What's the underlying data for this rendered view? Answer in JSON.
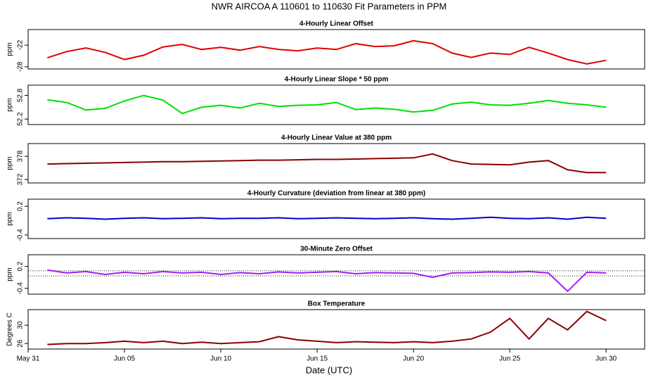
{
  "title": "NWR   AIRCOA A   110601 to 110630   Fit Parameters in PPM",
  "xlabel": "Date (UTC)",
  "chart_data": [
    {
      "type": "line",
      "title": "4-Hourly Linear Offset",
      "ylabel": "ppm",
      "x": [
        "Jun 01",
        "Jun 02",
        "Jun 03",
        "Jun 04",
        "Jun 05",
        "Jun 06",
        "Jun 07",
        "Jun 08",
        "Jun 09",
        "Jun 10",
        "Jun 11",
        "Jun 12",
        "Jun 13",
        "Jun 14",
        "Jun 15",
        "Jun 16",
        "Jun 17",
        "Jun 18",
        "Jun 19",
        "Jun 20",
        "Jun 21",
        "Jun 22",
        "Jun 23",
        "Jun 24",
        "Jun 25",
        "Jun 26",
        "Jun 27",
        "Jun 28",
        "Jun 29",
        "Jun 30"
      ],
      "xlim": [
        "May 31",
        "Jul 02"
      ],
      "series": [
        {
          "color": "#e00000",
          "values": [
            -25.5,
            -23.8,
            -22.8,
            -24,
            -26,
            -24.8,
            -22.5,
            -21.8,
            -23.2,
            -22.6,
            -23.4,
            -22.4,
            -23.2,
            -23.6,
            -22.8,
            -23.2,
            -21.6,
            -22.4,
            -22.2,
            -20.8,
            -21.6,
            -24.2,
            -25.4,
            -24.2,
            -24.6,
            -22.6,
            -24.2,
            -26,
            -27.2,
            -26.2
          ]
        }
      ],
      "ylim": [
        -28.6,
        -17.7
      ],
      "yticks": [
        -28,
        -22
      ]
    },
    {
      "type": "line",
      "title": "4-Hourly Linear Slope * 50 ppm",
      "ylabel": "ppm",
      "x": [
        "Jun 01",
        "Jun 02",
        "Jun 03",
        "Jun 04",
        "Jun 05",
        "Jun 06",
        "Jun 07",
        "Jun 08",
        "Jun 09",
        "Jun 10",
        "Jun 11",
        "Jun 12",
        "Jun 13",
        "Jun 14",
        "Jun 15",
        "Jun 16",
        "Jun 17",
        "Jun 18",
        "Jun 19",
        "Jun 20",
        "Jun 21",
        "Jun 22",
        "Jun 23",
        "Jun 24",
        "Jun 25",
        "Jun 26",
        "Jun 27",
        "Jun 28",
        "Jun 29",
        "Jun 30"
      ],
      "xlim": [
        "May 31",
        "Jul 02"
      ],
      "series": [
        {
          "color": "#00e000",
          "values": [
            52.69,
            52.62,
            52.43,
            52.47,
            52.66,
            52.8,
            52.68,
            52.34,
            52.5,
            52.55,
            52.48,
            52.6,
            52.52,
            52.55,
            52.56,
            52.62,
            52.44,
            52.48,
            52.45,
            52.38,
            52.42,
            52.58,
            52.63,
            52.56,
            52.55,
            52.6,
            52.67,
            52.6,
            52.56,
            52.5
          ]
        }
      ],
      "ylim": [
        52.06,
        53.06
      ],
      "yticks": [
        52.2,
        52.8
      ]
    },
    {
      "type": "line",
      "title": "4-Hourly Linear Value at 380 ppm",
      "ylabel": "ppm",
      "x": [
        "Jun 01",
        "Jun 02",
        "Jun 03",
        "Jun 04",
        "Jun 05",
        "Jun 06",
        "Jun 07",
        "Jun 08",
        "Jun 09",
        "Jun 10",
        "Jun 11",
        "Jun 12",
        "Jun 13",
        "Jun 14",
        "Jun 15",
        "Jun 16",
        "Jun 17",
        "Jun 18",
        "Jun 19",
        "Jun 20",
        "Jun 21",
        "Jun 22",
        "Jun 23",
        "Jun 24",
        "Jun 25",
        "Jun 26",
        "Jun 27",
        "Jun 28",
        "Jun 29",
        "Jun 30"
      ],
      "xlim": [
        "May 31",
        "Jul 02"
      ],
      "series": [
        {
          "color": "#8b0000",
          "values": [
            376.0,
            376.1,
            376.2,
            376.3,
            376.4,
            376.5,
            376.6,
            376.6,
            376.7,
            376.8,
            376.9,
            377.0,
            377.0,
            377.1,
            377.2,
            377.2,
            377.3,
            377.4,
            377.5,
            377.6,
            378.6,
            376.9,
            376.0,
            375.9,
            375.8,
            376.5,
            376.9,
            374.5,
            373.8,
            373.8
          ]
        }
      ],
      "ylim": [
        371.1,
        381.3
      ],
      "yticks": [
        372,
        378
      ]
    },
    {
      "type": "line",
      "title": "4-Hourly Curvature (deviation from linear at 380 ppm)",
      "ylabel": "ppm",
      "x": [
        "Jun 01",
        "Jun 02",
        "Jun 03",
        "Jun 04",
        "Jun 05",
        "Jun 06",
        "Jun 07",
        "Jun 08",
        "Jun 09",
        "Jun 10",
        "Jun 11",
        "Jun 12",
        "Jun 13",
        "Jun 14",
        "Jun 15",
        "Jun 16",
        "Jun 17",
        "Jun 18",
        "Jun 19",
        "Jun 20",
        "Jun 21",
        "Jun 22",
        "Jun 23",
        "Jun 24",
        "Jun 25",
        "Jun 26",
        "Jun 27",
        "Jun 28",
        "Jun 29",
        "Jun 30"
      ],
      "xlim": [
        "May 31",
        "Jul 02"
      ],
      "series": [
        {
          "color": "#0000cc",
          "values": [
            -0.06,
            -0.04,
            -0.05,
            -0.07,
            -0.05,
            -0.04,
            -0.06,
            -0.05,
            -0.04,
            -0.06,
            -0.05,
            -0.05,
            -0.04,
            -0.06,
            -0.05,
            -0.04,
            -0.05,
            -0.06,
            -0.05,
            -0.04,
            -0.06,
            -0.07,
            -0.05,
            -0.03,
            -0.05,
            -0.06,
            -0.04,
            -0.07,
            -0.03,
            -0.05
          ]
        }
      ],
      "ylim": [
        -0.475,
        0.35
      ],
      "yticks": [
        -0.4,
        0.2
      ]
    },
    {
      "type": "line",
      "title": "30-Minute Zero Offset",
      "ylabel": "ppm",
      "x": [
        "Jun 01",
        "Jun 02",
        "Jun 03",
        "Jun 04",
        "Jun 05",
        "Jun 06",
        "Jun 07",
        "Jun 08",
        "Jun 09",
        "Jun 10",
        "Jun 11",
        "Jun 12",
        "Jun 13",
        "Jun 14",
        "Jun 15",
        "Jun 16",
        "Jun 17",
        "Jun 18",
        "Jun 19",
        "Jun 20",
        "Jun 21",
        "Jun 22",
        "Jun 23",
        "Jun 24",
        "Jun 25",
        "Jun 26",
        "Jun 27",
        "Jun 28",
        "Jun 29",
        "Jun 30"
      ],
      "xlim": [
        "May 31",
        "Jul 02"
      ],
      "series": [
        {
          "color": "#a020f0",
          "values": [
            0.1,
            0.02,
            0.06,
            -0.02,
            0.04,
            0.0,
            0.06,
            0.02,
            0.04,
            -0.02,
            0.03,
            0.0,
            0.05,
            0.02,
            0.04,
            0.06,
            0.0,
            0.03,
            0.02,
            0.01,
            -0.1,
            0.02,
            0.03,
            0.05,
            0.04,
            0.06,
            0.02,
            -0.48,
            0.04,
            0.02
          ]
        }
      ],
      "reference_lines": [
        0.08,
        -0.06
      ],
      "ylim": [
        -0.56,
        0.52
      ],
      "yticks": [
        -0.4,
        0.2
      ]
    },
    {
      "type": "line",
      "title": "Box Temperature",
      "ylabel": "Degrees C",
      "x": [
        "Jun 01",
        "Jun 02",
        "Jun 03",
        "Jun 04",
        "Jun 05",
        "Jun 06",
        "Jun 07",
        "Jun 08",
        "Jun 09",
        "Jun 10",
        "Jun 11",
        "Jun 12",
        "Jun 13",
        "Jun 14",
        "Jun 15",
        "Jun 16",
        "Jun 17",
        "Jun 18",
        "Jun 19",
        "Jun 20",
        "Jun 21",
        "Jun 22",
        "Jun 23",
        "Jun 24",
        "Jun 25",
        "Jun 26",
        "Jun 27",
        "Jun 28",
        "Jun 29",
        "Jun 30"
      ],
      "xlim": [
        "May 31",
        "Jul 02"
      ],
      "series": [
        {
          "color": "#8b0000",
          "values": [
            25.8,
            26,
            26,
            26.2,
            26.5,
            26.2,
            26.5,
            26,
            26.3,
            26,
            26.2,
            26.4,
            27.5,
            26.8,
            26.5,
            26.2,
            26.4,
            26.3,
            26.2,
            26.4,
            26.2,
            26.5,
            27,
            28.5,
            31.5,
            27,
            31.5,
            29,
            33,
            31
          ]
        }
      ],
      "ylim": [
        24.8,
        33.4
      ],
      "yticks": [
        26,
        30
      ],
      "xticks": [
        "May 31",
        "Jun 05",
        "Jun 10",
        "Jun 15",
        "Jun 20",
        "Jun 25",
        "Jun 30"
      ]
    }
  ]
}
